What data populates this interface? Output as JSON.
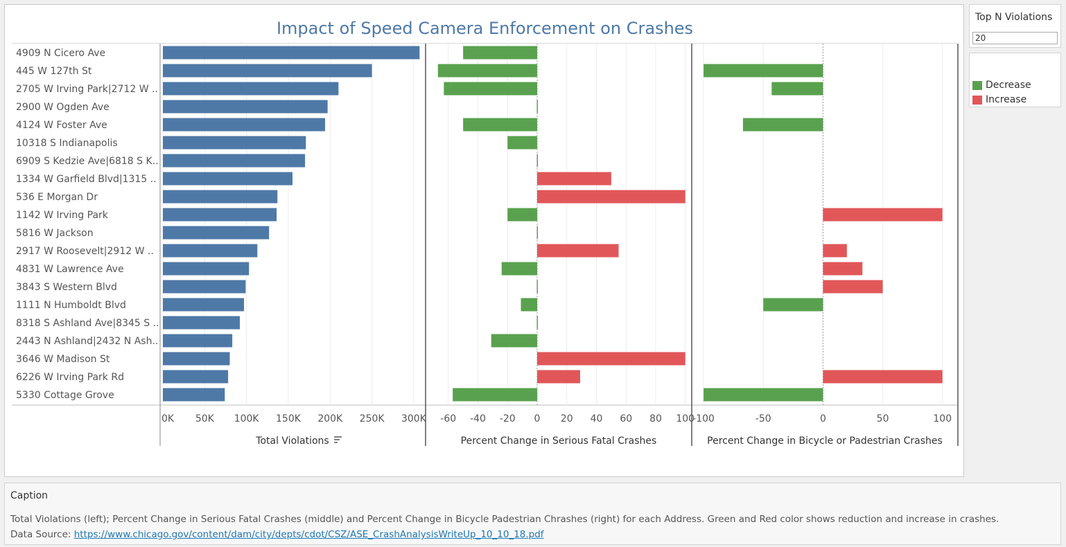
{
  "title": "Impact of Speed Camera Enforcement on Crashes",
  "parameter": {
    "label": "Top N Violations",
    "value": "20"
  },
  "legend": [
    {
      "label": "Decrease",
      "color": "#59a14f"
    },
    {
      "label": "Increase",
      "color": "#e15759"
    }
  ],
  "caption": {
    "title": "Caption",
    "text": "Total Violations (left); Percent Change in Serious Fatal Crashes (middle) and Percent Change in Bicycle Padestrian Chrashes (right) for each Address. Green and Red color shows reduction and increase in crashes.",
    "source_label": "Data Source: ",
    "source_url": "https://www.chicago.gov/content/dam/city/depts/cdot/CSZ/ASE_CrashAnalysisWriteUp_10_10_18.pdf"
  },
  "chart_data": {
    "type": "bar",
    "categories": [
      "4909 N Cicero Ave",
      "445 W 127th St",
      "2705 W Irving Park|2712 W ..",
      "2900 W Ogden Ave",
      "4124 W Foster Ave",
      "10318 S Indianapolis",
      "6909 S Kedzie Ave|6818 S K..",
      "1334 W Garfield Blvd|1315 ..",
      "536 E Morgan Dr",
      "1142 W Irving Park",
      "5816 W Jackson",
      "2917 W Roosevelt|2912 W ..",
      "4831 W Lawrence Ave",
      "3843 S Western Blvd",
      "1111 N Humboldt Blvd",
      "8318 S Ashland Ave|8345 S ..",
      "2443 N Ashland|2432 N Ash..",
      "3646 W Madison St",
      "6226 W Irving Park Rd",
      "5330 Cottage Grove"
    ],
    "colors": {
      "violations": "#4e79a7",
      "decrease": "#59a14f",
      "increase": "#e15759"
    },
    "panels": [
      {
        "name": "Total Violations",
        "xlabel": "Total Violations",
        "sorted": true,
        "xlim": [
          0,
          310000
        ],
        "ticks": [
          0,
          50000,
          100000,
          150000,
          200000,
          250000,
          300000
        ],
        "tick_labels": [
          "0K",
          "50K",
          "100K",
          "150K",
          "200K",
          "250K",
          "300K"
        ],
        "values": [
          307000,
          250000,
          210000,
          197000,
          194000,
          171000,
          170000,
          155000,
          137000,
          136000,
          127000,
          113000,
          103000,
          99000,
          97000,
          92000,
          83000,
          80000,
          78000,
          74000
        ]
      },
      {
        "name": "Percent Change in Serious Fatal Crashes",
        "xlabel": "Percent Change in Serious Fatal Crashes",
        "xlim": [
          -73,
          102
        ],
        "ticks": [
          -60,
          -40,
          -20,
          0,
          20,
          40,
          60,
          80,
          100
        ],
        "tick_labels": [
          "-60",
          "-40",
          "-20",
          "0",
          "20",
          "40",
          "60",
          "80",
          "100"
        ],
        "values": [
          -50,
          -67,
          -63,
          0,
          -50,
          -20,
          0,
          50,
          100,
          -20,
          0,
          55,
          -24,
          0,
          -11,
          0,
          -31,
          100,
          29,
          -57
        ]
      },
      {
        "name": "Percent Change in Bicycle or Padestrian Crashes",
        "xlabel": "Percent Change in Bicycle or Padestrian Crashes",
        "xlim": [
          -107,
          110
        ],
        "ticks": [
          -100,
          -50,
          0,
          50,
          100
        ],
        "tick_labels": [
          "-100",
          "-50",
          "0",
          "50",
          "100"
        ],
        "values": [
          0,
          -100,
          -43,
          0,
          -67,
          0,
          0,
          0,
          0,
          100,
          0,
          20,
          33,
          50,
          -50,
          0,
          0,
          0,
          100,
          -100
        ]
      }
    ]
  }
}
